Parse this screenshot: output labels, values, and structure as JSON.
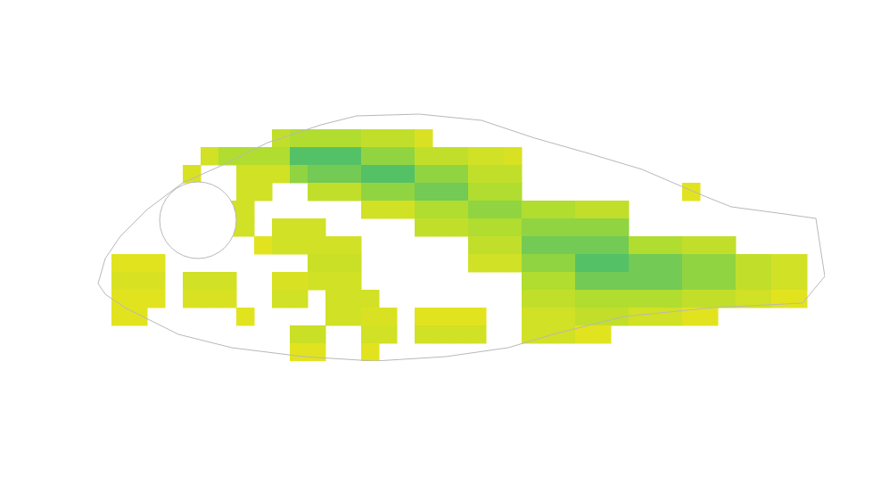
{
  "chart_data": {
    "type": "heatmap",
    "tick_labels": false,
    "xlim": [
      0,
      41
    ],
    "ylim": [
      0,
      14
    ],
    "zlim": [
      0,
      0.8
    ],
    "z": [
      [
        null,
        null,
        null,
        null,
        null,
        null,
        null,
        null,
        null,
        null,
        null,
        null,
        null,
        null,
        null,
        null,
        null,
        null,
        null,
        null,
        null,
        null,
        null,
        null,
        null,
        null,
        null,
        null,
        null,
        null,
        null,
        null,
        null,
        null,
        null,
        null,
        null,
        null,
        null,
        null,
        null
      ],
      [
        null,
        null,
        null,
        null,
        null,
        null,
        null,
        null,
        null,
        null,
        0.3,
        0.4,
        0.4,
        0.4,
        0.4,
        0.3,
        0.3,
        0.3,
        0.15,
        null,
        null,
        null,
        null,
        null,
        null,
        null,
        null,
        null,
        null,
        null,
        null,
        null,
        null,
        null,
        null,
        null,
        null,
        null,
        null,
        null,
        null
      ],
      [
        null,
        null,
        null,
        null,
        null,
        null,
        0.2,
        0.4,
        0.4,
        0.4,
        0.4,
        0.7,
        0.7,
        0.7,
        0.7,
        0.5,
        0.5,
        0.5,
        0.3,
        0.3,
        0.3,
        0.2,
        0.2,
        0.15,
        null,
        null,
        null,
        null,
        null,
        null,
        null,
        null,
        null,
        null,
        null,
        null,
        null,
        null,
        null,
        null,
        null
      ],
      [
        null,
        null,
        null,
        null,
        null,
        0.15,
        null,
        null,
        0.2,
        0.2,
        0.2,
        0.5,
        0.6,
        0.6,
        0.6,
        0.7,
        0.7,
        0.7,
        0.5,
        0.5,
        0.5,
        0.3,
        0.3,
        0.3,
        null,
        null,
        null,
        null,
        null,
        null,
        null,
        null,
        null,
        null,
        null,
        null,
        null,
        null,
        null,
        null,
        null
      ],
      [
        null,
        null,
        null,
        null,
        null,
        null,
        null,
        null,
        0.2,
        0.2,
        null,
        null,
        0.3,
        0.3,
        0.3,
        0.5,
        0.5,
        0.5,
        0.6,
        0.6,
        0.6,
        0.4,
        0.4,
        0.4,
        null,
        null,
        null,
        null,
        null,
        null,
        null,
        null,
        null,
        0.1,
        null,
        null,
        null,
        null,
        null,
        null,
        null
      ],
      [
        null,
        null,
        null,
        null,
        null,
        null,
        null,
        0.2,
        0.2,
        null,
        null,
        null,
        null,
        null,
        null,
        0.2,
        0.2,
        0.2,
        0.4,
        0.4,
        0.4,
        0.5,
        0.5,
        0.5,
        0.4,
        0.4,
        0.4,
        0.3,
        0.3,
        0.3,
        null,
        null,
        null,
        null,
        null,
        null,
        null,
        null,
        null,
        null,
        null
      ],
      [
        null,
        null,
        null,
        null,
        null,
        null,
        null,
        0.2,
        0.2,
        null,
        0.2,
        0.2,
        0.2,
        null,
        null,
        null,
        null,
        null,
        0.3,
        0.3,
        0.3,
        0.4,
        0.4,
        0.4,
        0.5,
        0.5,
        0.5,
        0.5,
        0.5,
        0.5,
        null,
        null,
        null,
        null,
        null,
        null,
        null,
        null,
        null,
        null,
        null
      ],
      [
        null,
        null,
        null,
        null,
        null,
        null,
        null,
        null,
        null,
        0.1,
        0.2,
        0.2,
        0.2,
        0.2,
        0.2,
        null,
        null,
        null,
        null,
        null,
        null,
        0.3,
        0.3,
        0.3,
        0.6,
        0.6,
        0.6,
        0.6,
        0.6,
        0.6,
        0.4,
        0.4,
        0.4,
        0.3,
        0.3,
        0.3,
        null,
        null,
        null,
        null,
        null
      ],
      [
        null,
        0.1,
        0.1,
        0.1,
        null,
        null,
        null,
        null,
        null,
        null,
        null,
        null,
        0.25,
        0.25,
        0.25,
        null,
        null,
        null,
        null,
        null,
        null,
        0.2,
        0.2,
        0.2,
        0.5,
        0.5,
        0.5,
        0.7,
        0.7,
        0.7,
        0.6,
        0.6,
        0.6,
        0.5,
        0.5,
        0.5,
        0.3,
        0.3,
        0.2,
        0.2,
        null
      ],
      [
        null,
        0.15,
        0.15,
        0.15,
        null,
        0.2,
        0.2,
        0.2,
        null,
        null,
        0.15,
        0.15,
        0.2,
        0.2,
        0.2,
        null,
        null,
        null,
        null,
        null,
        null,
        null,
        null,
        null,
        0.4,
        0.4,
        0.4,
        0.6,
        0.6,
        0.6,
        0.6,
        0.6,
        0.6,
        0.5,
        0.5,
        0.5,
        0.3,
        0.3,
        0.2,
        0.2,
        null
      ],
      [
        null,
        0.1,
        0.1,
        0.1,
        null,
        0.15,
        0.15,
        0.15,
        null,
        null,
        0.2,
        0.2,
        null,
        0.2,
        0.2,
        0.2,
        null,
        null,
        null,
        null,
        null,
        null,
        null,
        null,
        0.3,
        0.3,
        0.3,
        0.4,
        0.4,
        0.4,
        0.4,
        0.4,
        0.4,
        0.3,
        0.3,
        0.3,
        0.2,
        0.2,
        0.1,
        0.1,
        null
      ],
      [
        null,
        0.1,
        0.1,
        null,
        null,
        null,
        null,
        null,
        0.1,
        null,
        null,
        null,
        null,
        0.2,
        0.2,
        0.15,
        0.15,
        null,
        0.1,
        0.1,
        0.1,
        0.1,
        null,
        null,
        0.2,
        0.2,
        0.2,
        0.3,
        0.3,
        0.3,
        0.2,
        0.2,
        0.2,
        0.1,
        0.1,
        null,
        null,
        null,
        null,
        null,
        null
      ],
      [
        null,
        null,
        null,
        null,
        null,
        null,
        null,
        null,
        null,
        null,
        null,
        0.25,
        0.25,
        null,
        null,
        0.2,
        0.2,
        null,
        0.2,
        0.2,
        0.2,
        0.2,
        null,
        null,
        0.2,
        0.2,
        0.2,
        0.1,
        0.1,
        null,
        null,
        null,
        null,
        null,
        null,
        null,
        null,
        null,
        null,
        null,
        null
      ],
      [
        null,
        null,
        null,
        null,
        null,
        null,
        null,
        null,
        null,
        null,
        null,
        0.1,
        0.1,
        null,
        null,
        0.1,
        null,
        null,
        null,
        null,
        null,
        null,
        null,
        null,
        null,
        null,
        null,
        null,
        null,
        null,
        null,
        null,
        null,
        null,
        null,
        null,
        null,
        null,
        null,
        null,
        null
      ]
    ],
    "outline": {
      "x": [
        0.25,
        0.65,
        1.5,
        3,
        5,
        7.25,
        9.75,
        12.75,
        14.75,
        18.25,
        21.75,
        24.75,
        27.75,
        30.75,
        34.25,
        35.75,
        38.75,
        40.5,
        41,
        39.75,
        37.75,
        34.75,
        29.75,
        25.75,
        23.25,
        19.75,
        15.75,
        11.75,
        7.75,
        4.75,
        1.75,
        0.65
      ],
      "y": [
        9.65,
        8.25,
        7,
        5.5,
        4,
        3,
        1.75,
        0.75,
        0.25,
        0.15,
        0.5,
        1.5,
        2.35,
        3.25,
        4.75,
        5.35,
        5.75,
        6,
        9.25,
        10.75,
        10.85,
        11,
        11.5,
        12.5,
        13.25,
        13.75,
        14,
        13.75,
        13.25,
        12.5,
        11,
        10.25
      ]
    },
    "hole": {
      "x": 5.85,
      "y": 6.1,
      "r": 2.15
    }
  }
}
